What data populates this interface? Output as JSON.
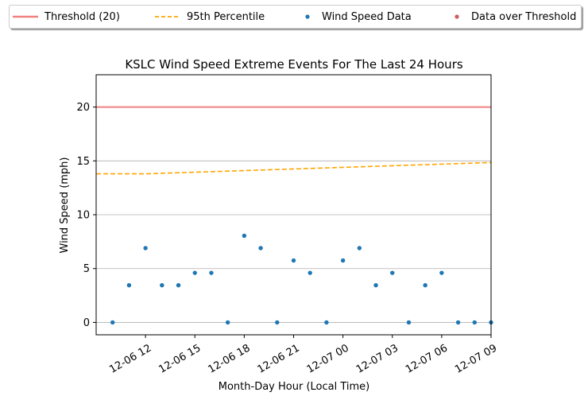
{
  "chart_data": {
    "type": "scatter",
    "title": "KSLC Wind Speed Extreme Events For The Last 24 Hours",
    "xlabel": "Month-Day Hour (Local Time)",
    "ylabel": "Wind Speed (mph)",
    "x_unit": "hours",
    "xlim": [
      9.0,
      33.0
    ],
    "ylim": [
      -1.15,
      23.0
    ],
    "x_ticks": [
      {
        "value": 12,
        "label": "12-06 12"
      },
      {
        "value": 15,
        "label": "12-06 15"
      },
      {
        "value": 18,
        "label": "12-06 18"
      },
      {
        "value": 21,
        "label": "12-06 21"
      },
      {
        "value": 24,
        "label": "12-07 00"
      },
      {
        "value": 27,
        "label": "12-07 03"
      },
      {
        "value": 30,
        "label": "12-07 06"
      },
      {
        "value": 33,
        "label": "12-07 09"
      }
    ],
    "y_ticks": [
      0,
      5,
      10,
      15,
      20
    ],
    "grid": "horizontal",
    "legend_position": "top, outside plot",
    "series": [
      {
        "name": "Threshold (20)",
        "kind": "line",
        "color": "#f08080",
        "x": [
          9.0,
          33.0
        ],
        "y": [
          20,
          20
        ]
      },
      {
        "name": "95th Percentile",
        "kind": "dashed-line",
        "color": "#ffa500",
        "x": [
          9.0,
          12.0,
          15.0,
          18.0,
          21.0,
          24.0,
          27.0,
          30.0,
          33.0
        ],
        "y": [
          13.8,
          13.8,
          13.95,
          14.1,
          14.25,
          14.4,
          14.55,
          14.7,
          14.85
        ]
      },
      {
        "name": "Wind Speed Data",
        "kind": "scatter",
        "color": "#1f77b4",
        "x": [
          10,
          11,
          12,
          13,
          14,
          15,
          16,
          17,
          18,
          19,
          20,
          21,
          22,
          23,
          24,
          25,
          26,
          27,
          28,
          29,
          30,
          31,
          32,
          33
        ],
        "y": [
          0,
          3.45,
          6.9,
          3.45,
          3.45,
          4.6,
          4.6,
          0,
          8.05,
          6.9,
          0,
          5.75,
          4.6,
          0,
          5.75,
          6.9,
          3.45,
          4.6,
          0,
          3.45,
          4.6,
          0,
          0,
          0
        ]
      },
      {
        "name": "Data over Threshold",
        "kind": "scatter",
        "color": "#cd5c5c",
        "x": [],
        "y": []
      }
    ]
  }
}
